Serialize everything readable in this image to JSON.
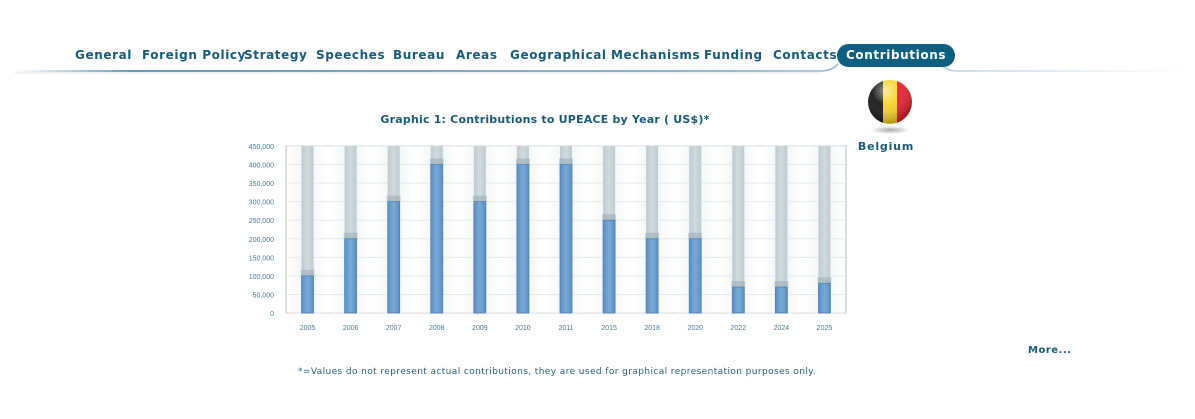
{
  "nav": {
    "items": [
      {
        "label": "General",
        "active": false
      },
      {
        "label": "Foreign Policy",
        "active": false
      },
      {
        "label": "Strategy",
        "active": false
      },
      {
        "label": "Speeches",
        "active": false
      },
      {
        "label": "Bureau",
        "active": false
      },
      {
        "label": "Areas",
        "active": false
      },
      {
        "label": "Geographical",
        "active": false
      },
      {
        "label": "Mechanisms",
        "active": false
      },
      {
        "label": "Funding",
        "active": false
      },
      {
        "label": "Contacts",
        "active": false
      },
      {
        "label": "Contributions",
        "active": true
      }
    ]
  },
  "country": {
    "name": "Belgium",
    "flag_colors": [
      "#1a1a1a",
      "#f5d328",
      "#e0242c"
    ],
    "flag_icon": "belgium-flag-icon"
  },
  "more_label": "More...",
  "footnote": "*=Values do not represent actual contributions, they are used for graphical representation purposes only.",
  "colors": {
    "accent": "#0e5f80",
    "text": "#1a5a7a",
    "bar": "#7aa9d6",
    "bar_track": "#cfdade"
  },
  "chart_data": {
    "type": "bar",
    "title": "Graphic 1: Contributions to UPEACE by Year ( US$)*",
    "xlabel": "",
    "ylabel": "",
    "categories": [
      "2005",
      "2006",
      "2007",
      "2008",
      "2009",
      "2010",
      "2011",
      "2015",
      "2018",
      "2020",
      "2022",
      "2024",
      "2025"
    ],
    "values": [
      100000,
      200000,
      300000,
      400000,
      300000,
      400000,
      400000,
      250000,
      200000,
      200000,
      70000,
      70000,
      80000
    ],
    "ylim": [
      0,
      450000
    ],
    "yticks": [
      0,
      50000,
      100000,
      150000,
      200000,
      250000,
      300000,
      350000,
      400000,
      450000
    ],
    "ytick_labels": [
      "0",
      "50,000",
      "100,000",
      "150,000",
      "200,000",
      "250,000",
      "300,000",
      "350,000",
      "400,000",
      "450,000"
    ],
    "grid": true,
    "legend": "none"
  }
}
